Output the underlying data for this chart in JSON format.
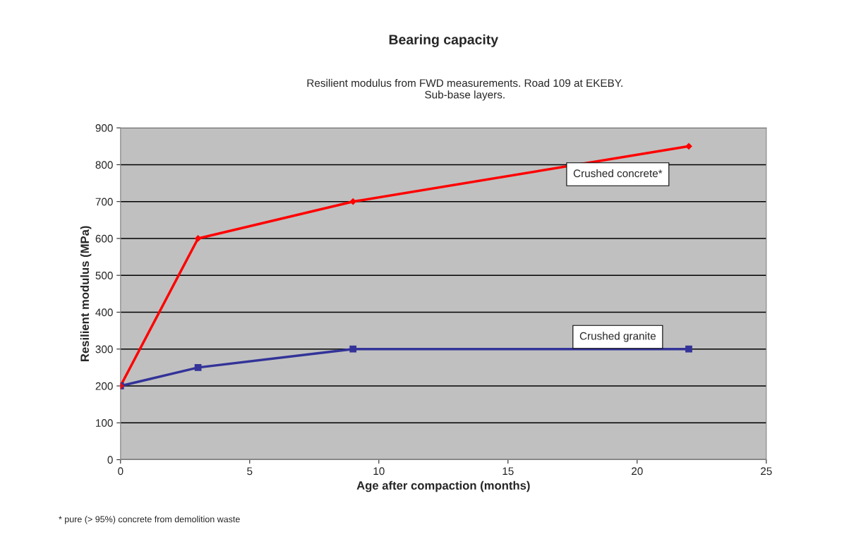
{
  "chart_data": {
    "type": "line",
    "title": "Bearing capacity",
    "subtitle": "Resilient modulus from FWD measurements. Road 109 at EKEBY.\nSub-base layers.",
    "xlabel": "Age after compaction (months)",
    "ylabel": "Resilient modulus (MPa)",
    "series": [
      {
        "name": "Crushed concrete*",
        "color": "#ff0000",
        "marker": "diamond",
        "x": [
          0,
          3,
          9,
          22
        ],
        "values": [
          200,
          600,
          700,
          850
        ]
      },
      {
        "name": "Crushed granite",
        "color": "#333399",
        "marker": "square",
        "x": [
          0,
          3,
          9,
          22
        ],
        "values": [
          200,
          250,
          300,
          300
        ]
      }
    ],
    "xlim": [
      0,
      25
    ],
    "xticks": [
      0,
      5,
      10,
      15,
      20,
      25
    ],
    "ylim": [
      0,
      900
    ],
    "yticks": [
      0,
      100,
      200,
      300,
      400,
      500,
      600,
      700,
      800,
      900
    ],
    "grid": "y",
    "legend": false,
    "annotations": [
      "* pure (> 95%) concrete from demolition waste"
    ]
  }
}
